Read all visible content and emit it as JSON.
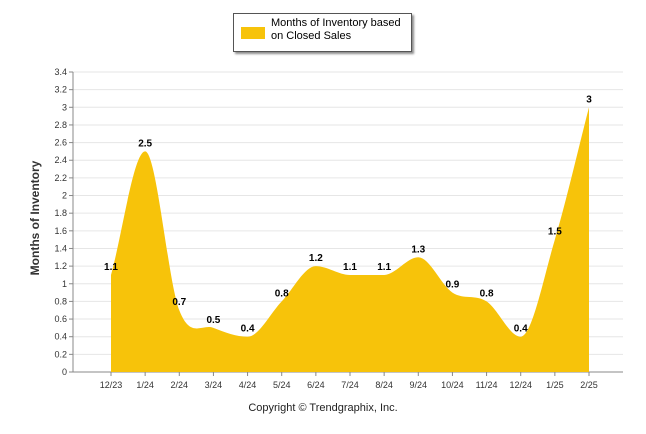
{
  "chart_data": {
    "type": "area",
    "categories": [
      "12/23",
      "1/24",
      "2/24",
      "3/24",
      "4/24",
      "5/24",
      "6/24",
      "7/24",
      "8/24",
      "9/24",
      "10/24",
      "11/24",
      "12/24",
      "1/25",
      "2/25"
    ],
    "series": [
      {
        "name": "Months of Inventory based on Closed Sales",
        "values": [
          1.1,
          2.5,
          0.7,
          0.5,
          0.4,
          0.8,
          1.2,
          1.1,
          1.1,
          1.3,
          0.9,
          0.8,
          0.4,
          1.5,
          3
        ],
        "color": "#F7C30A"
      }
    ],
    "data_labels": [
      "1.1",
      "2.5",
      "0.7",
      "0.5",
      "0.4",
      "0.8",
      "1.2",
      "1.1",
      "1.1",
      "1.3",
      "0.9",
      "0.8",
      "0.4",
      "1.5",
      "3"
    ],
    "ylabel": "Months of Inventory",
    "ylim": [
      0,
      3.4
    ],
    "yticks": [
      "0",
      "0.2",
      "0.4",
      "0.6",
      "0.8",
      "1",
      "1.2",
      "1.4",
      "1.6",
      "1.8",
      "2",
      "2.2",
      "2.4",
      "2.6",
      "2.8",
      "3",
      "3.2",
      "3.4"
    ],
    "grid": true,
    "legend_position": "top-center"
  },
  "legend": {
    "label": "Months of Inventory based on Closed Sales"
  },
  "footer": {
    "copyright": "Copyright © Trendgraphix, Inc."
  }
}
